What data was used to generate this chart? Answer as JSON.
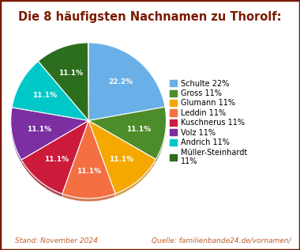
{
  "title": "Die 8 häufigsten Nachnamen zu Thorolf:",
  "labels": [
    "Schulte",
    "Gross",
    "Glumann",
    "Leddin",
    "Kuschnerus",
    "Volz",
    "Andrich",
    "Müller-Steinhardt"
  ],
  "values": [
    22.2,
    11.1,
    11.1,
    11.1,
    11.1,
    11.1,
    11.1,
    11.1
  ],
  "pct_labels": [
    "22.2%",
    "11.1%",
    "11.1%",
    "11.1%",
    "11.1%",
    "11.1%",
    "11.1%",
    "11.1%"
  ],
  "colors": [
    "#6ab0e8",
    "#4d8c2a",
    "#f5a800",
    "#f47042",
    "#cc1a3a",
    "#7b2fa0",
    "#00c8c8",
    "#2d6e1e"
  ],
  "shadow_colors": [
    "#4a80b8",
    "#2d6010",
    "#c07800",
    "#c04010",
    "#8a0010",
    "#4a0070",
    "#009898",
    "#0d4e00"
  ],
  "legend_labels": [
    "Schulte 22%",
    "Gross 11%",
    "Glumann 11%",
    "Leddin 11%",
    "Kuschnerus 11%",
    "Volz 11%",
    "Andrich 11%",
    "Müller-Steinhardt\n11%"
  ],
  "title_color": "#7b1a00",
  "footer_left": "Stand: November 2024",
  "footer_right": "Quelle: familienbande24.de/vornamen/",
  "footer_color": "#c06030",
  "bg_color": "#ffffff",
  "border_color": "#7b1a00",
  "startangle": 90
}
